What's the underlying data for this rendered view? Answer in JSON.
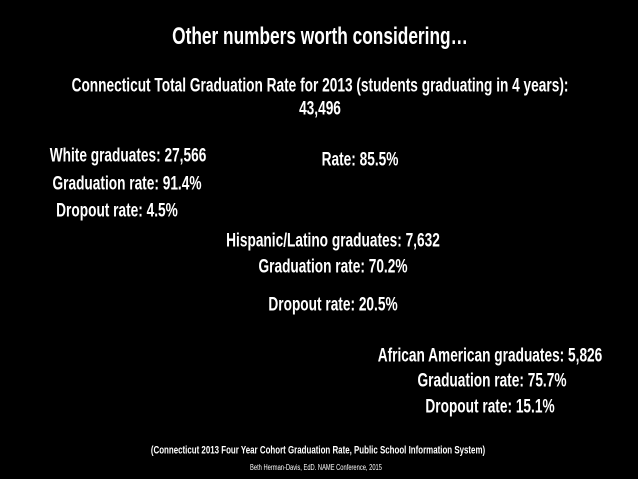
{
  "title": "Other numbers worth considering…",
  "summary": {
    "heading": "Connecticut Total Graduation Rate for 2013 (students graduating in 4 years):",
    "total": "43,496",
    "rate": "Rate: 85.5%"
  },
  "groups": [
    {
      "graduates": "White graduates: 27,566",
      "graduation_rate": "Graduation rate: 91.4%",
      "dropout_rate": "Dropout rate: 4.5%"
    },
    {
      "graduates": "Hispanic/Latino graduates: 7,632",
      "graduation_rate": "Graduation rate: 70.2%",
      "dropout_rate": "Dropout rate: 20.5%"
    },
    {
      "graduates": "African American graduates: 5,826",
      "graduation_rate": "Graduation rate: 75.7%",
      "dropout_rate": "Dropout rate: 15.1%"
    }
  ],
  "citation": "(Connecticut 2013 Four Year Cohort Graduation Rate, Public School Information System)",
  "credit": "Beth Herman-Davis, EdD. NAME Conference, 2015"
}
